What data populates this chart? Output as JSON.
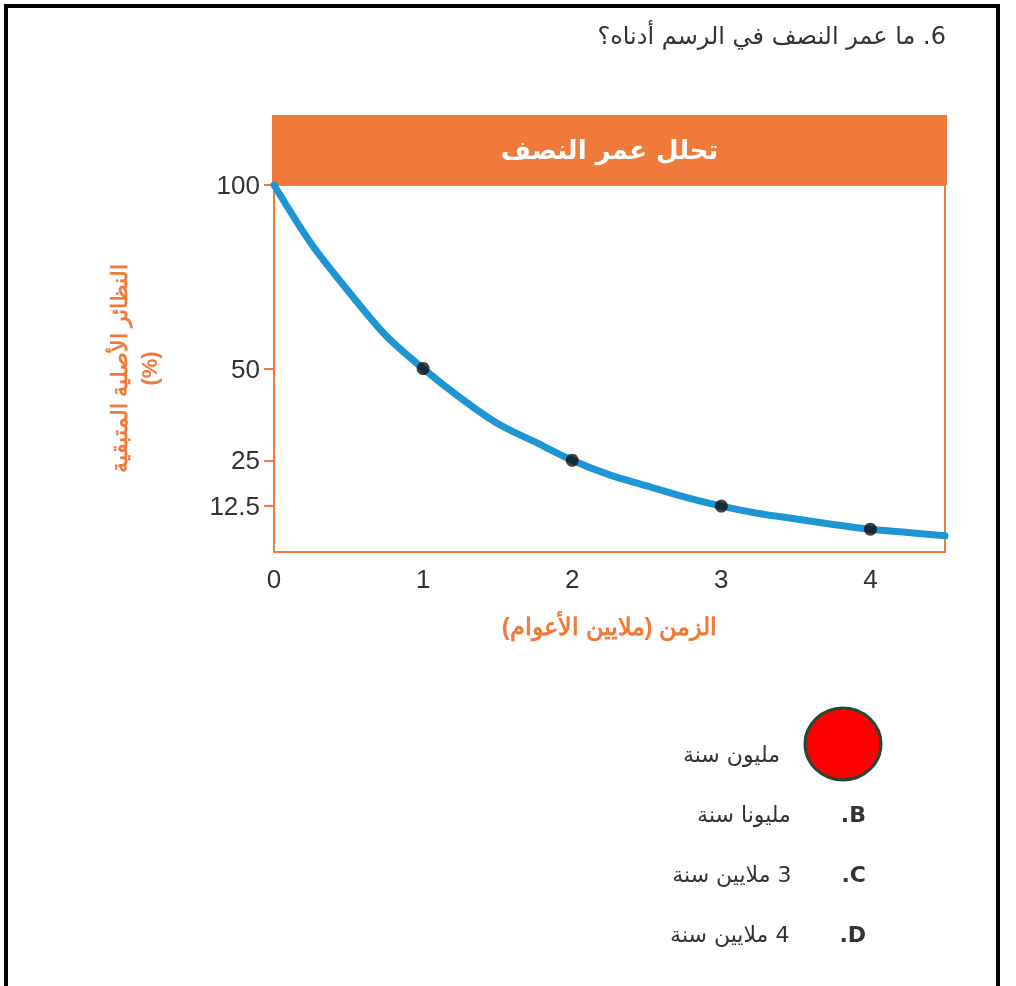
{
  "chart_data": {
    "type": "line",
    "title": "تحلل عمر النصف",
    "subtitle": "6. ما عمر النصف في الرسم أدناه؟",
    "xlabel": "الزمن (ملايين الأعوام)",
    "ylabel": "النظائر الأصلية المتبقية\n(%)",
    "x": [
      0,
      0.25,
      0.5,
      0.75,
      1,
      1.25,
      1.5,
      1.75,
      2,
      2.25,
      2.5,
      2.75,
      3,
      3.25,
      3.5,
      3.75,
      4,
      4.25,
      4.5
    ],
    "series": [
      {
        "color": "#1e96d4",
        "marker": "none",
        "line_style": "solid",
        "values": [
          100,
          84,
          71,
          59,
          50,
          42,
          35,
          30,
          25,
          21,
          18,
          15,
          12.5,
          10.5,
          9,
          7.5,
          6.2,
          5.3,
          4.4
        ]
      },
      {
        "type": "scatter",
        "color": "#111111",
        "marker": "circle",
        "x": [
          1,
          2,
          3,
          4
        ],
        "values": [
          50,
          25,
          12.5,
          6.2
        ]
      }
    ],
    "xlim": [
      0,
      4.5
    ],
    "xticks": [
      0,
      1,
      2,
      3,
      4
    ],
    "ylim": [
      0,
      100
    ],
    "yticks": [
      12.5,
      25,
      50,
      100
    ],
    "grid": false,
    "annotations": [
      "مليون سنة",
      "B. مليونا سنة",
      "C. 3 ملايين سنة",
      "D. 4 ملايين سنة"
    ]
  }
}
